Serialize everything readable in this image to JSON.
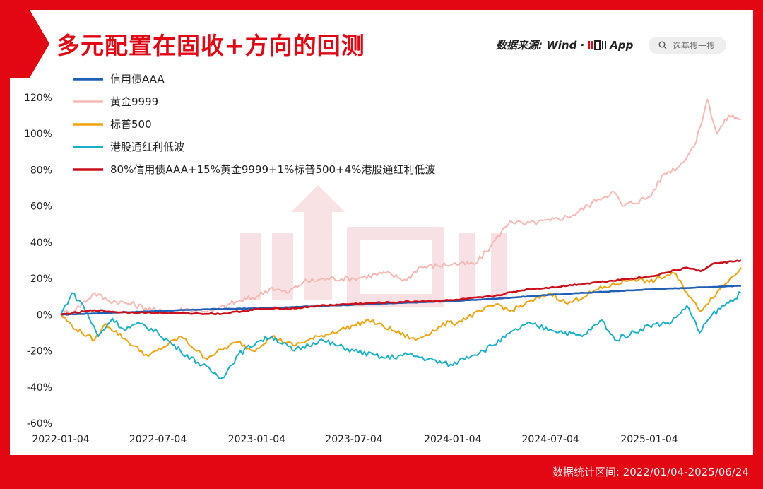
{
  "page": {
    "title": "多元配置在固收+方向的回测",
    "source_label": "数据来源: Wind ·",
    "brand_label": "App",
    "search_placeholder": "选基搜一搜",
    "footer": "数据统计区间:  2022/01/04-2025/06/24"
  },
  "colors": {
    "frame": "#e30613",
    "watermark": "#f3c9cd"
  },
  "chart_data": {
    "type": "line",
    "title": "多元配置在固收+方向的回测",
    "xlabel": "",
    "ylabel": "",
    "x_start": "2022-01-04",
    "x_end": "2025-06-24",
    "x_ticks": [
      "2022-01-04",
      "2022-07-04",
      "2023-01-04",
      "2023-07-04",
      "2024-01-04",
      "2024-07-04",
      "2025-01-04"
    ],
    "y_ticks": [
      "120%",
      "100%",
      "80%",
      "60%",
      "40%",
      "20%",
      "0%",
      "-20%",
      "-40%",
      "-60%"
    ],
    "ylim": [
      -60,
      120
    ],
    "y_unit": "%",
    "grid": false,
    "legend_position": "top-left",
    "series": [
      {
        "name": "信用债AAA",
        "color": "#1f5fb4",
        "points": [
          [
            "2022-01-04",
            0
          ],
          [
            "2022-04-01",
            1
          ],
          [
            "2022-07-04",
            2
          ],
          [
            "2022-10-01",
            3
          ],
          [
            "2023-01-04",
            3.5
          ],
          [
            "2023-04-01",
            4.5
          ],
          [
            "2023-07-04",
            5.5
          ],
          [
            "2023-10-01",
            6.5
          ],
          [
            "2024-01-04",
            7.5
          ],
          [
            "2024-04-01",
            9
          ],
          [
            "2024-07-04",
            11
          ],
          [
            "2024-10-01",
            12.5
          ],
          [
            "2025-01-04",
            14
          ],
          [
            "2025-04-01",
            15
          ],
          [
            "2025-06-24",
            16
          ]
        ]
      },
      {
        "name": "黄金9999",
        "color": "#f5b8b4",
        "points": [
          [
            "2022-01-04",
            0
          ],
          [
            "2022-02-01",
            3
          ],
          [
            "2022-03-08",
            12
          ],
          [
            "2022-04-01",
            8
          ],
          [
            "2022-05-15",
            6
          ],
          [
            "2022-07-04",
            2
          ],
          [
            "2022-09-01",
            3
          ],
          [
            "2022-10-15",
            2
          ],
          [
            "2022-11-15",
            6
          ],
          [
            "2023-01-04",
            10
          ],
          [
            "2023-02-01",
            15
          ],
          [
            "2023-03-01",
            12
          ],
          [
            "2023-04-01",
            18
          ],
          [
            "2023-05-15",
            20
          ],
          [
            "2023-07-04",
            20
          ],
          [
            "2023-09-01",
            23
          ],
          [
            "2023-10-10",
            19
          ],
          [
            "2023-11-01",
            26
          ],
          [
            "2024-01-04",
            28
          ],
          [
            "2024-02-15",
            28
          ],
          [
            "2024-03-15",
            38
          ],
          [
            "2024-04-20",
            52
          ],
          [
            "2024-05-15",
            50
          ],
          [
            "2024-07-04",
            52
          ],
          [
            "2024-08-15",
            55
          ],
          [
            "2024-10-01",
            64
          ],
          [
            "2024-10-30",
            68
          ],
          [
            "2024-11-15",
            60
          ],
          [
            "2025-01-04",
            65
          ],
          [
            "2025-02-01",
            78
          ],
          [
            "2025-03-01",
            82
          ],
          [
            "2025-04-01",
            95
          ],
          [
            "2025-04-22",
            119
          ],
          [
            "2025-05-10",
            100
          ],
          [
            "2025-06-01",
            110
          ],
          [
            "2025-06-24",
            108
          ]
        ]
      },
      {
        "name": "标普500",
        "color": "#f0a30a",
        "points": [
          [
            "2022-01-04",
            0
          ],
          [
            "2022-02-01",
            -8
          ],
          [
            "2022-03-08",
            -14
          ],
          [
            "2022-03-29",
            -5
          ],
          [
            "2022-05-10",
            -15
          ],
          [
            "2022-06-16",
            -23
          ],
          [
            "2022-08-16",
            -12
          ],
          [
            "2022-09-30",
            -24
          ],
          [
            "2022-11-30",
            -15
          ],
          [
            "2022-12-28",
            -20
          ],
          [
            "2023-02-01",
            -12
          ],
          [
            "2023-03-13",
            -17
          ],
          [
            "2023-05-01",
            -12
          ],
          [
            "2023-07-04",
            -6
          ],
          [
            "2023-07-31",
            -3
          ],
          [
            "2023-10-27",
            -14
          ],
          [
            "2023-12-29",
            -4
          ],
          [
            "2024-01-04",
            -5
          ],
          [
            "2024-03-28",
            6
          ],
          [
            "2024-04-19",
            2
          ],
          [
            "2024-07-04",
            12
          ],
          [
            "2024-08-05",
            6
          ],
          [
            "2024-10-01",
            14
          ],
          [
            "2024-12-06",
            20
          ],
          [
            "2025-01-04",
            18
          ],
          [
            "2025-02-19",
            23
          ],
          [
            "2025-04-08",
            2
          ],
          [
            "2025-05-15",
            14
          ],
          [
            "2025-06-24",
            26
          ]
        ]
      },
      {
        "name": "港股通红利低波",
        "color": "#17b0c8",
        "points": [
          [
            "2022-01-04",
            0
          ],
          [
            "2022-01-25",
            12
          ],
          [
            "2022-02-15",
            5
          ],
          [
            "2022-03-15",
            -12
          ],
          [
            "2022-04-10",
            -2
          ],
          [
            "2022-05-01",
            -8
          ],
          [
            "2022-06-01",
            -5
          ],
          [
            "2022-07-04",
            -10
          ],
          [
            "2022-08-15",
            -20
          ],
          [
            "2022-10-31",
            -35
          ],
          [
            "2022-12-01",
            -22
          ],
          [
            "2023-01-04",
            -15
          ],
          [
            "2023-02-01",
            -12
          ],
          [
            "2023-03-15",
            -20
          ],
          [
            "2023-05-01",
            -14
          ],
          [
            "2023-07-04",
            -20
          ],
          [
            "2023-09-01",
            -24
          ],
          [
            "2023-10-15",
            -22
          ],
          [
            "2024-01-04",
            -28
          ],
          [
            "2024-01-22",
            -24
          ],
          [
            "2024-03-01",
            -20
          ],
          [
            "2024-05-20",
            -5
          ],
          [
            "2024-07-04",
            -8
          ],
          [
            "2024-09-01",
            -12
          ],
          [
            "2024-10-08",
            -3
          ],
          [
            "2024-11-01",
            -14
          ],
          [
            "2025-01-04",
            -6
          ],
          [
            "2025-02-15",
            -4
          ],
          [
            "2025-03-15",
            5
          ],
          [
            "2025-04-08",
            -10
          ],
          [
            "2025-05-01",
            0
          ],
          [
            "2025-06-24",
            12
          ]
        ]
      },
      {
        "name": "80%信用债AAA+15%黄金9999+1%标普500+4%港股通红利低波",
        "color": "#cc0f1b",
        "points": [
          [
            "2022-01-04",
            0
          ],
          [
            "2022-03-08",
            2.5
          ],
          [
            "2022-04-15",
            1.5
          ],
          [
            "2022-07-04",
            1
          ],
          [
            "2022-10-31",
            0.5
          ],
          [
            "2023-01-04",
            3
          ],
          [
            "2023-03-15",
            3.5
          ],
          [
            "2023-05-01",
            5
          ],
          [
            "2023-07-04",
            6
          ],
          [
            "2023-10-01",
            7
          ],
          [
            "2024-01-04",
            8
          ],
          [
            "2024-03-15",
            10
          ],
          [
            "2024-05-20",
            14
          ],
          [
            "2024-07-04",
            15
          ],
          [
            "2024-10-01",
            18
          ],
          [
            "2024-12-01",
            20
          ],
          [
            "2025-01-04",
            21
          ],
          [
            "2025-03-15",
            26
          ],
          [
            "2025-04-10",
            24
          ],
          [
            "2025-05-01",
            28
          ],
          [
            "2025-06-24",
            30
          ]
        ]
      }
    ]
  }
}
